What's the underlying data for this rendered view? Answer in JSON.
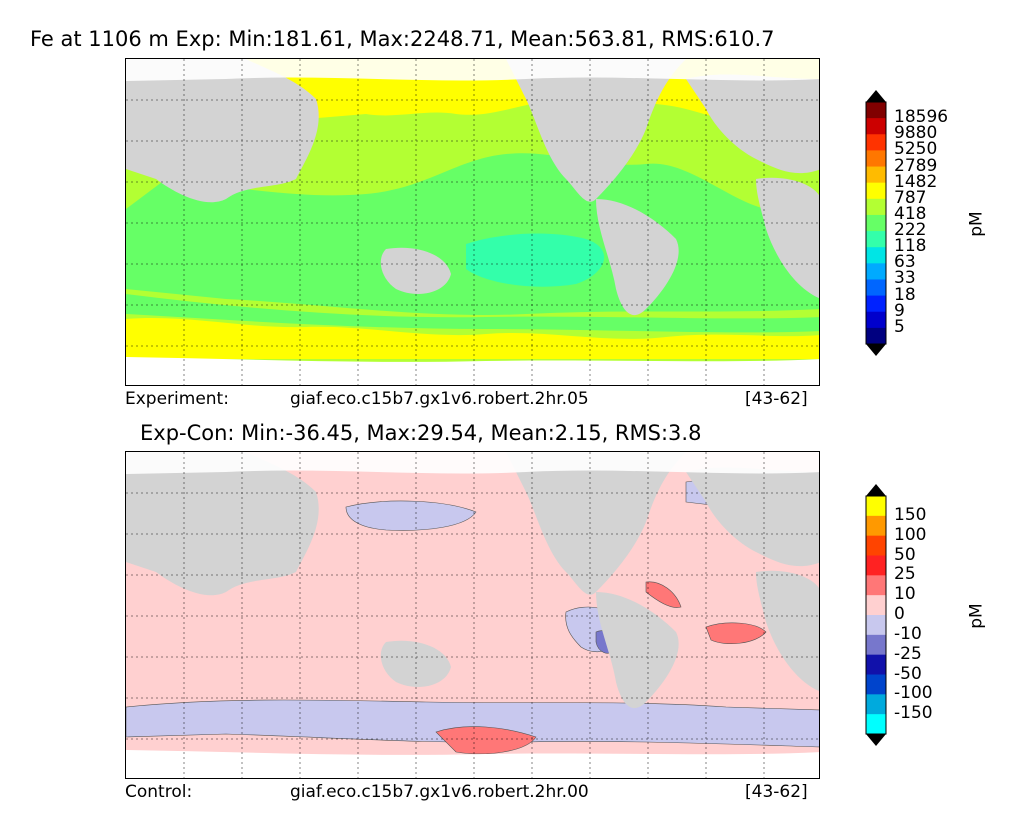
{
  "top": {
    "title": "Fe at 1106 m Exp: Min:181.61, Max:2248.71, Mean:563.81, RMS:610.7",
    "footer_left": "Experiment:",
    "footer_mid": "giaf.eco.c15b7.gx1v6.robert.2hr.05",
    "footer_right": "[43-62]",
    "colorbar": {
      "unit": "pM",
      "ticks": [
        "18596",
        "9880",
        "5250",
        "2789",
        "1482",
        "787",
        "418",
        "222",
        "118",
        "63",
        "33",
        "18",
        "9",
        "5"
      ],
      "colors": [
        "#800000",
        "#cc0000",
        "#ff3300",
        "#ff7700",
        "#ffbb00",
        "#ffff00",
        "#b3ff33",
        "#66ff66",
        "#33ffaa",
        "#00e5e5",
        "#00aaff",
        "#0066ff",
        "#0022ff",
        "#0000cc",
        "#000080"
      ]
    }
  },
  "bottom": {
    "title": "Exp-Con: Min:-36.45, Max:29.54, Mean:2.15, RMS:3.8",
    "footer_left": "Control:",
    "footer_mid": "giaf.eco.c15b7.gx1v6.robert.2hr.00",
    "footer_right": "[43-62]",
    "colorbar": {
      "unit": "pM",
      "ticks": [
        "150",
        "100",
        "50",
        "25",
        "10",
        "0",
        "-10",
        "-25",
        "-50",
        "-100",
        "-150"
      ],
      "colors": [
        "#ffff00",
        "#ff9900",
        "#ff4400",
        "#ff2222",
        "#ff7777",
        "#ffd0d0",
        "#c8c8ee",
        "#7777cc",
        "#1111aa",
        "#0044cc",
        "#00aadd",
        "#00ffff"
      ]
    }
  }
}
